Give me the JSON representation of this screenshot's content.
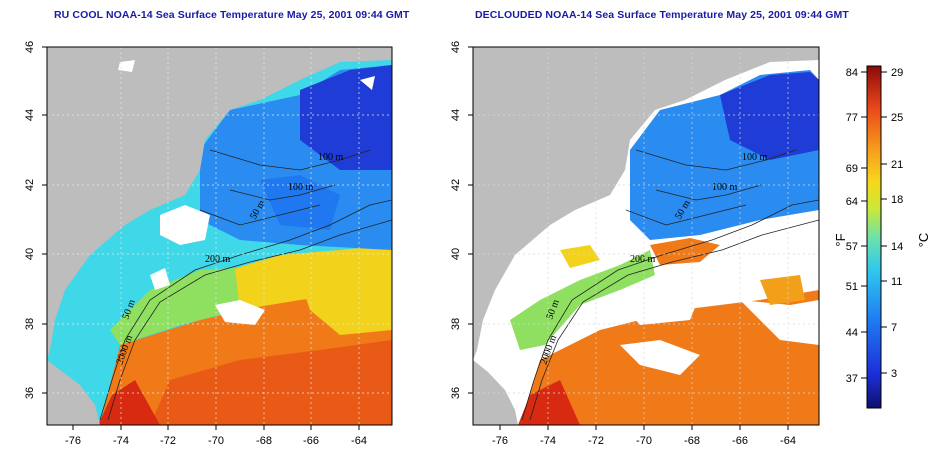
{
  "panels": [
    {
      "title": "RU COOL NOAA-14 Sea Surface Temperature May 25, 2001 09:44 GMT",
      "x_ticks": [
        "-76",
        "-74",
        "-72",
        "-70",
        "-68",
        "-66",
        "-64"
      ],
      "y_ticks": [
        "36",
        "38",
        "40",
        "42",
        "44",
        "46"
      ],
      "contour_labels": [
        "100 m",
        "100 m",
        "50 m",
        "200 m",
        "50 m",
        "2000 m"
      ]
    },
    {
      "title": "DECLOUDED NOAA-14 Sea Surface Temperature May 25, 2001 09:44 GMT",
      "x_ticks": [
        "-76",
        "-74",
        "-72",
        "-70",
        "-68",
        "-66",
        "-64"
      ],
      "y_ticks": [
        "36",
        "38",
        "40",
        "42",
        "44",
        "46"
      ],
      "contour_labels": [
        "100 m",
        "100 m",
        "50 m",
        "200 m",
        "50 m",
        "2000 m"
      ]
    }
  ],
  "colorbar": {
    "fahrenheit_label": "°F",
    "celsius_label": "°C",
    "fahrenheit_ticks": [
      "84",
      "77",
      "69",
      "64",
      "57",
      "51",
      "44",
      "37"
    ],
    "celsius_ticks": [
      "29",
      "25",
      "21",
      "18",
      "14",
      "11",
      "7",
      "3"
    ]
  },
  "colors": {
    "land": "#bdbdbd",
    "cloud": "#ffffff",
    "deep_blue": "#1f3cd6",
    "blue": "#2a8cf0",
    "cyan": "#3fd8e8",
    "green": "#8fe060",
    "yellow": "#f2d21a",
    "orange": "#f07a18",
    "red": "#d82a10",
    "title_color": "#1a1aa6"
  }
}
